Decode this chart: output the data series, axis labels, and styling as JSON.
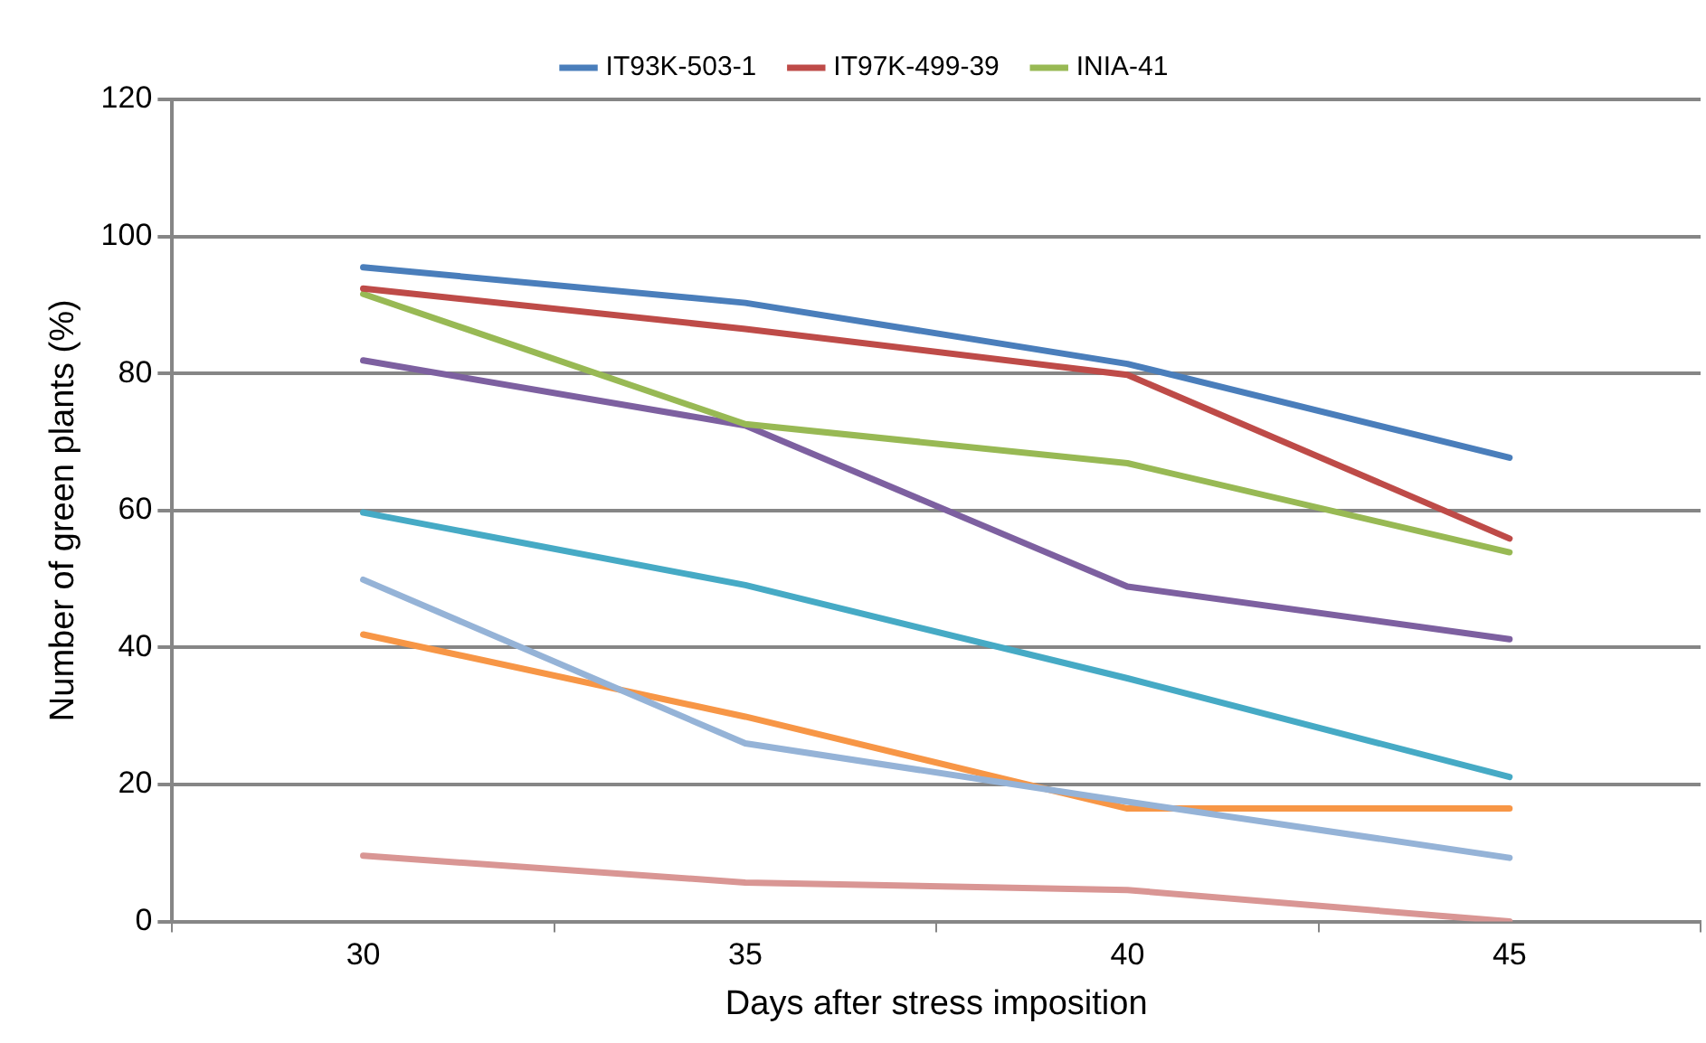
{
  "chart_data": {
    "type": "line",
    "xlabel": "Days after stress imposition",
    "ylabel": "Number of green plants (%)",
    "categories": [
      "30",
      "35",
      "40",
      "45"
    ],
    "series": [
      {
        "name": "IT93K-503-1",
        "color": "#4a7ebb",
        "values": [
          95.5,
          90.3,
          81.4,
          67.7
        ]
      },
      {
        "name": "IT97K-499-39",
        "color": "#be4b48",
        "values": [
          92.4,
          86.5,
          79.8,
          55.9
        ]
      },
      {
        "name": "INIA-41",
        "color": "#98b954",
        "values": [
          91.6,
          72.6,
          66.9,
          53.9
        ]
      },
      {
        "color": "#7d60a0",
        "values": [
          81.9,
          72.4,
          48.9,
          41.2
        ]
      },
      {
        "color": "#46aac5",
        "values": [
          59.7,
          49.1,
          35.5,
          21.1
        ]
      },
      {
        "color": "#95b3d7",
        "values": [
          49.9,
          26,
          17.5,
          9.3
        ]
      },
      {
        "color": "#f79646",
        "values": [
          41.9,
          29.9,
          16.5,
          16.5
        ]
      },
      {
        "color": "#d99694",
        "values": [
          9.6,
          5.7,
          4.6,
          0
        ]
      }
    ],
    "ylim": [
      0,
      120
    ],
    "yticks": [
      0,
      20,
      40,
      60,
      80,
      100,
      120
    ],
    "grid": "y",
    "legend": "top",
    "marker": "none",
    "line_style": "solid"
  }
}
